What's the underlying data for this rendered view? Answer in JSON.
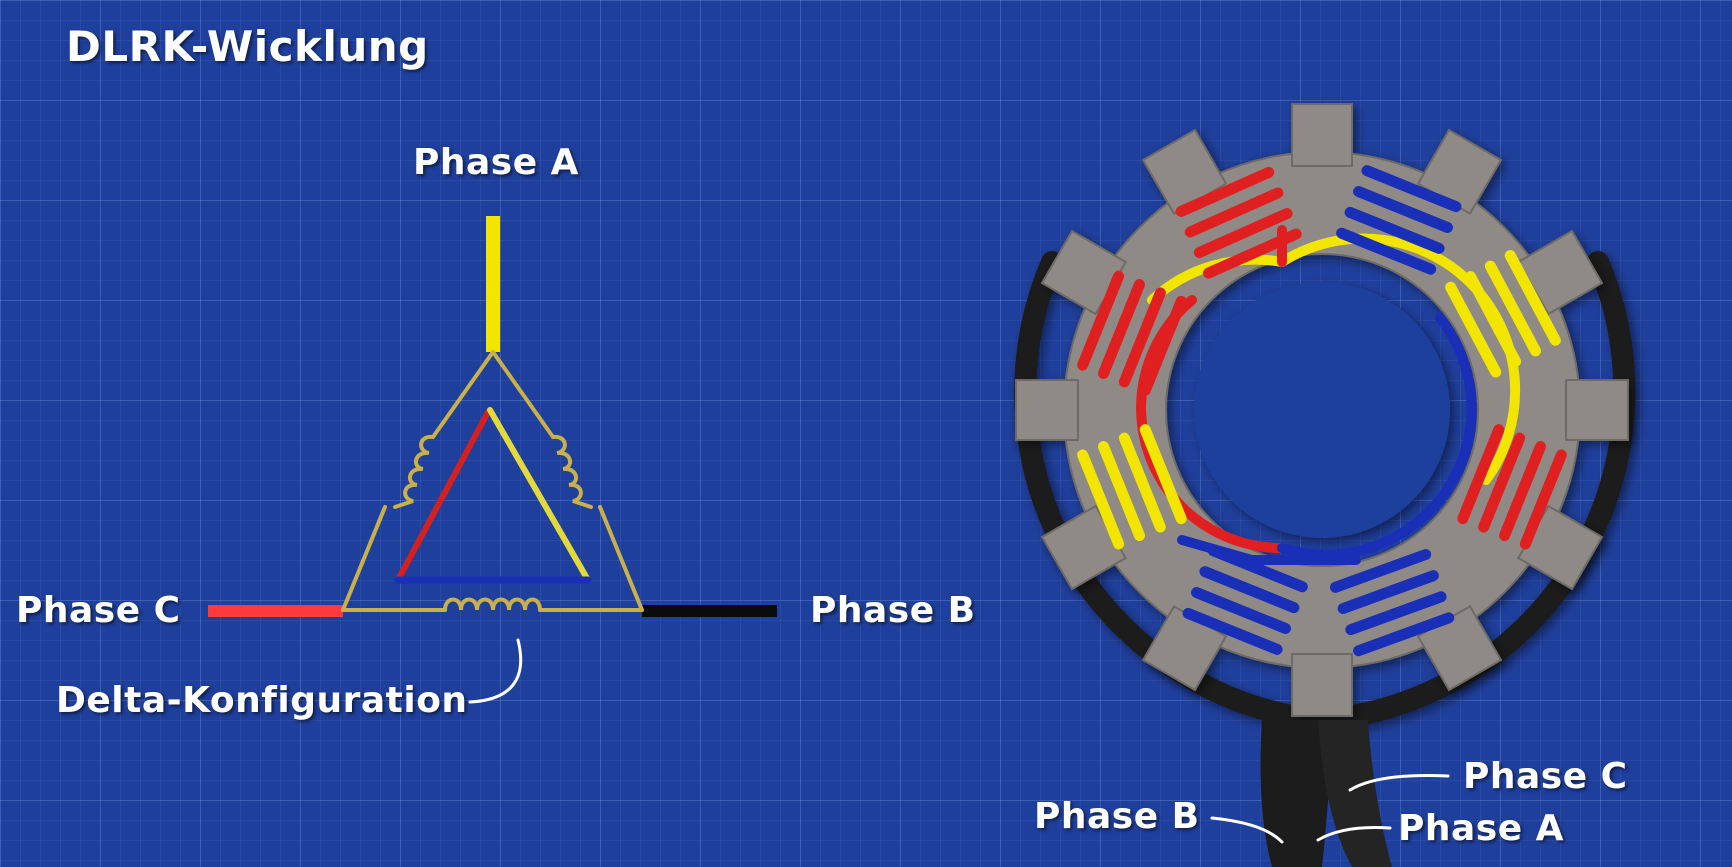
{
  "title": "DLRK-Wicklung",
  "delta_diagram": {
    "phase_a": "Phase A",
    "phase_b": "Phase B",
    "phase_c": "Phase C",
    "config_label": "Delta-Konfiguration"
  },
  "stator": {
    "phase_a": "Phase A",
    "phase_b": "Phase B",
    "phase_c": "Phase C"
  },
  "colors": {
    "background": "#1f3f9c",
    "phase_yellow": "#f2e600",
    "phase_red": "#e02020",
    "phase_blue": "#1a2fb8",
    "coil_gold": "#c9b04a",
    "stator_gray": "#8f8a86"
  }
}
